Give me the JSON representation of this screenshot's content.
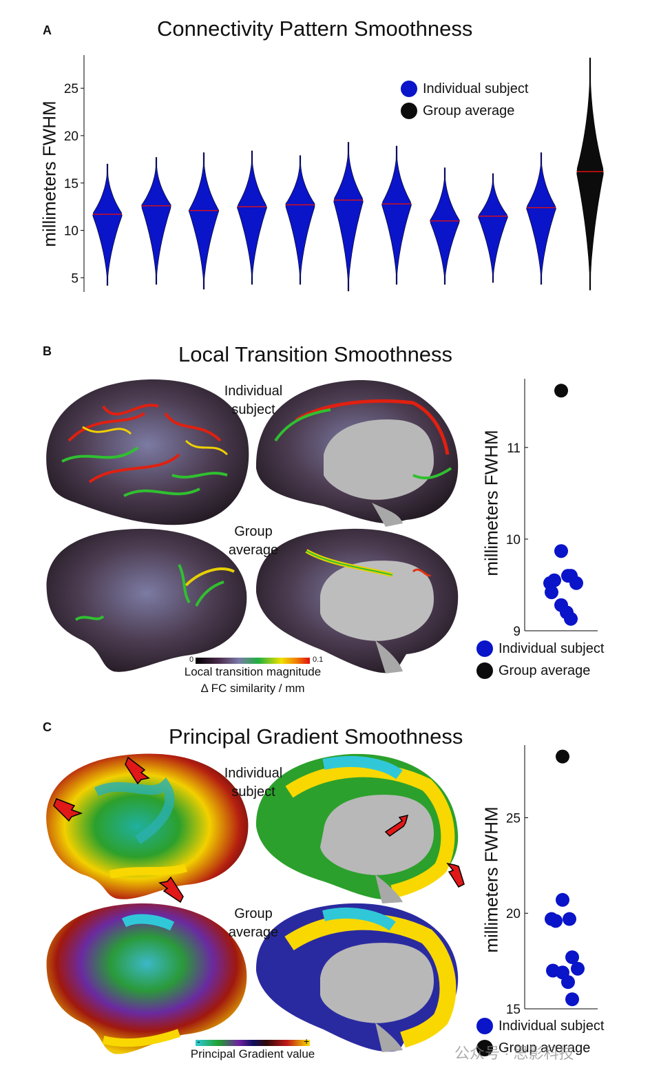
{
  "panelA": {
    "letter": "A",
    "title": "Connectivity Pattern Smoothness",
    "ylabel": "millimeters FWHM",
    "legend": [
      {
        "label": "Individual subject",
        "color": "#0a14c8"
      },
      {
        "label": "Group average",
        "color": "#0c0c0c"
      }
    ]
  },
  "panelB": {
    "letter": "B",
    "title": "Local Transition Smoothness",
    "brain_labels": {
      "top": "Individual\nsubject",
      "bottom": "Group\naverage"
    },
    "colorbar": {
      "min": "0",
      "max": "0.1",
      "label1": "Local transition magnitude",
      "label2": "Δ FC similarity / mm"
    },
    "ylabel": "millimeters FWHM",
    "legend": [
      {
        "label": "Individual subject",
        "color": "#0a14c8"
      },
      {
        "label": "Group average",
        "color": "#0c0c0c"
      }
    ]
  },
  "panelC": {
    "letter": "C",
    "title": "Principal Gradient Smoothness",
    "brain_labels": {
      "top": "Individual\nsubject",
      "bottom": "Group\naverage"
    },
    "colorbar": {
      "min": "-",
      "max": "+",
      "label1": "Principal Gradient value"
    },
    "ylabel": "millimeters FWHM",
    "legend": [
      {
        "label": "Individual subject",
        "color": "#0a14c8"
      },
      {
        "label": "Group average",
        "color": "#0c0c0c"
      }
    ]
  },
  "watermark": "公众号 · 思影科技",
  "colors": {
    "individual": "#0a14c8",
    "group": "#0c0c0c",
    "median": "#e01010"
  },
  "chart_data": [
    {
      "type": "violin",
      "ylim": [
        3.5,
        28.5
      ],
      "yticks": [
        5,
        10,
        15,
        20,
        25
      ],
      "series": [
        {
          "name": "Individual subject",
          "medians": [
            11.7,
            12.6,
            12.1,
            12.5,
            12.7,
            13.2,
            12.8,
            11.0,
            11.5,
            12.4
          ],
          "mins": [
            4.2,
            4.3,
            3.8,
            4.3,
            4.3,
            3.6,
            4.3,
            4.3,
            4.5,
            4.3
          ],
          "maxs": [
            17.0,
            17.7,
            18.2,
            18.4,
            17.9,
            19.3,
            18.9,
            16.6,
            16.0,
            18.2
          ]
        },
        {
          "name": "Group average",
          "medians": [
            16.2
          ],
          "mins": [
            3.7
          ],
          "maxs": [
            28.2
          ]
        }
      ]
    },
    {
      "type": "scatter",
      "ylim": [
        9.0,
        11.75
      ],
      "yticks": [
        9,
        10,
        11
      ],
      "series": [
        {
          "name": "Individual subject",
          "values": [
            9.87,
            9.55,
            9.6,
            9.52,
            9.6,
            9.52,
            9.42,
            9.28,
            9.2,
            9.13
          ]
        },
        {
          "name": "Group average",
          "values": [
            11.62
          ]
        }
      ]
    },
    {
      "type": "scatter",
      "ylim": [
        15.0,
        28.8
      ],
      "yticks": [
        15,
        20,
        25
      ],
      "series": [
        {
          "name": "Individual subject",
          "values": [
            20.7,
            19.6,
            19.7,
            19.7,
            17.7,
            17.1,
            17.0,
            16.9,
            16.4,
            15.5
          ]
        },
        {
          "name": "Group average",
          "values": [
            28.2
          ]
        }
      ]
    }
  ]
}
